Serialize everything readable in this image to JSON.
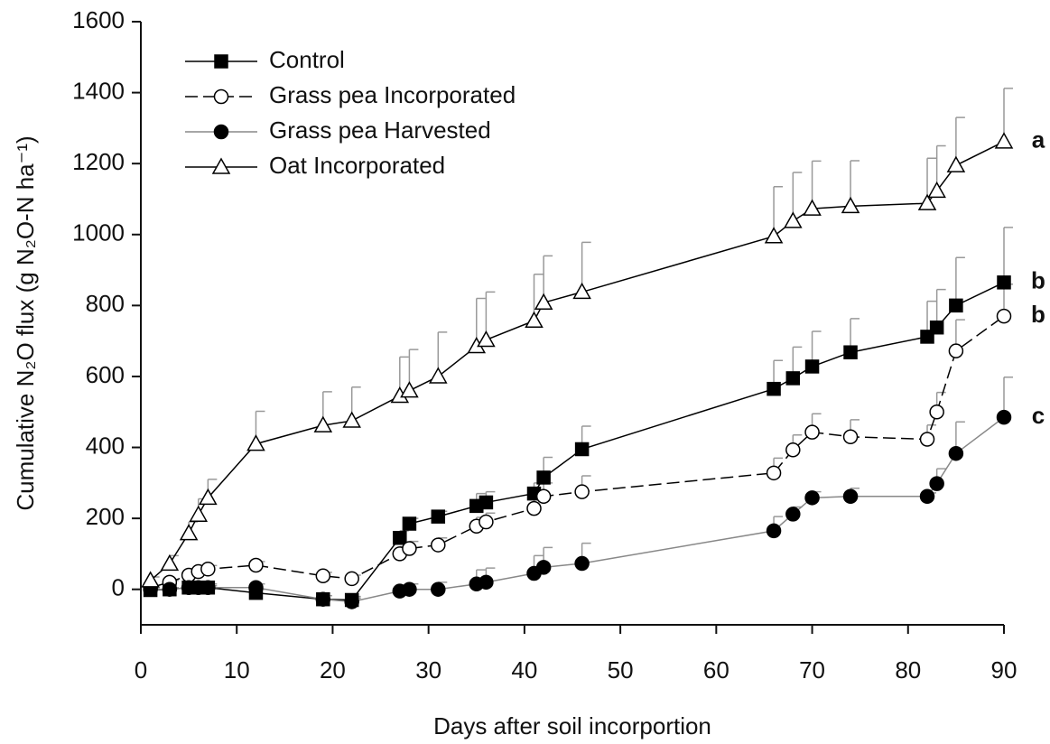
{
  "chart_data": {
    "type": "line",
    "x_label": "Days after soil incorportion",
    "y_label": "Cumulative N₂O flux (g N₂O-N ha⁻¹)",
    "x": [
      1,
      3,
      5,
      6,
      7,
      12,
      19,
      22,
      27,
      28,
      31,
      35,
      36,
      41,
      42,
      46,
      66,
      68,
      70,
      74,
      82,
      83,
      85,
      90
    ],
    "xlim": [
      0,
      90
    ],
    "xticks": [
      0,
      10,
      20,
      30,
      40,
      50,
      60,
      70,
      80,
      90
    ],
    "ylim": [
      -100,
      1600
    ],
    "yticks": [
      0,
      200,
      400,
      600,
      800,
      1000,
      1200,
      1400,
      1600
    ],
    "legend": "top-left",
    "series": [
      {
        "name": "Control",
        "color": "#000000",
        "line_color": "#000000",
        "marker": "square",
        "filled": true,
        "dashed": false,
        "group_label": "b",
        "values": [
          -2,
          0,
          5,
          5,
          5,
          -10,
          -28,
          -30,
          145,
          185,
          205,
          235,
          245,
          270,
          315,
          395,
          565,
          595,
          628,
          668,
          712,
          738,
          800,
          865
        ],
        "errors": [
          5,
          5,
          10,
          10,
          10,
          10,
          10,
          10,
          20,
          15,
          15,
          35,
          30,
          30,
          57,
          65,
          80,
          88,
          99,
          95,
          100,
          107,
          135,
          155
        ]
      },
      {
        "name": "Grass pea Incorporated",
        "color": "#000000",
        "line_color": "#000000",
        "marker": "circle",
        "filled": false,
        "dashed": true,
        "group_label": "b",
        "values": [
          5,
          20,
          40,
          50,
          57,
          68,
          38,
          30,
          100,
          115,
          125,
          178,
          190,
          228,
          262,
          275,
          328,
          393,
          443,
          430,
          423,
          500,
          672,
          770
        ],
        "errors": [
          5,
          5,
          10,
          10,
          10,
          10,
          10,
          10,
          20,
          20,
          20,
          25,
          25,
          30,
          38,
          45,
          42,
          42,
          52,
          48,
          40,
          55,
          88,
          90
        ]
      },
      {
        "name": "Grass pea Harvested",
        "color": "#000000",
        "line_color": "#888888",
        "marker": "circle",
        "filled": true,
        "dashed": false,
        "group_label": "c",
        "values": [
          0,
          0,
          5,
          5,
          5,
          5,
          -28,
          -35,
          -5,
          0,
          0,
          15,
          20,
          45,
          62,
          73,
          165,
          212,
          258,
          262,
          262,
          298,
          383,
          485
        ],
        "errors": [
          5,
          5,
          5,
          5,
          5,
          10,
          10,
          10,
          10,
          15,
          20,
          40,
          40,
          50,
          56,
          57,
          40,
          20,
          17,
          23,
          10,
          42,
          89,
          113
        ]
      },
      {
        "name": "Oat Incorporated",
        "color": "#000000",
        "line_color": "#000000",
        "marker": "triangle",
        "filled": false,
        "dashed": false,
        "group_label": "a",
        "values": [
          25,
          72,
          158,
          210,
          258,
          410,
          462,
          475,
          545,
          560,
          600,
          685,
          703,
          757,
          808,
          838,
          995,
          1038,
          1073,
          1080,
          1088,
          1123,
          1195,
          1262
        ],
        "errors": [
          10,
          23,
          32,
          45,
          52,
          92,
          95,
          95,
          110,
          116,
          125,
          135,
          135,
          131,
          132,
          140,
          140,
          137,
          134,
          128,
          127,
          127,
          135,
          150
        ]
      }
    ]
  }
}
